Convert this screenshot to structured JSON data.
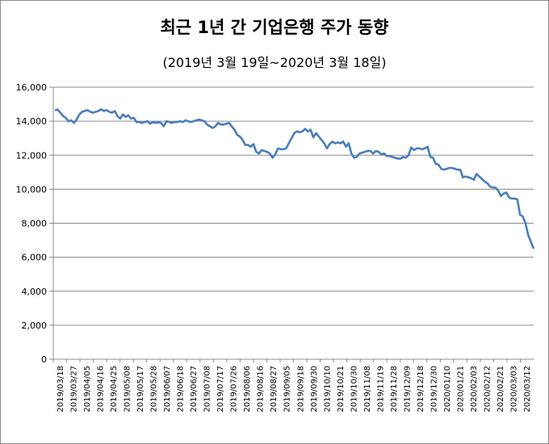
{
  "chart_data": {
    "type": "line",
    "title": "최근 1년 간 기업은행 주가 동향",
    "subtitle": "(2019년 3월 19일~2020년 3월 18일)",
    "xlabel": "",
    "ylabel": "",
    "ylim": [
      0,
      16000
    ],
    "yticks": [
      0,
      2000,
      4000,
      6000,
      8000,
      10000,
      12000,
      14000,
      16000
    ],
    "ytick_labels": [
      "0",
      "2,000",
      "4,000",
      "6,000",
      "8,000",
      "10,000",
      "12,000",
      "14,000",
      "16,000"
    ],
    "grid": true,
    "legend": "none",
    "line_color": "#4a7ebb",
    "x_tick_labels": [
      "2019/03/18",
      "2019/03/27",
      "2019/04/05",
      "2019/04/16",
      "2019/04/25",
      "2019/05/08",
      "2019/05/17",
      "2019/05/28",
      "2019/06/07",
      "2019/06/18",
      "2019/06/27",
      "2019/07/08",
      "2019/07/17",
      "2019/07/26",
      "2019/08/06",
      "2019/08/16",
      "2019/08/27",
      "2019/09/05",
      "2019/09/18",
      "2019/09/30",
      "2019/10/10",
      "2019/10/21",
      "2019/10/30",
      "2019/11/08",
      "2019/11/19",
      "2019/11/28",
      "2019/12/09",
      "2019/12/18",
      "2019/12/30",
      "2020/01/10",
      "2020/01/21",
      "2020/02/03",
      "2020/02/12",
      "2020/02/21",
      "2020/03/03",
      "2020/03/12"
    ],
    "series": [
      {
        "values": [
          14650,
          14680,
          14500,
          14300,
          14200,
          14000,
          14050,
          13900,
          14100,
          14400,
          14550,
          14600,
          14650,
          14550,
          14500,
          14550,
          14600,
          14700,
          14600,
          14650,
          14550,
          14500,
          14600,
          14300,
          14150,
          14400,
          14250,
          14350,
          14150,
          14200,
          13950,
          13950,
          13900,
          13950,
          14000,
          13850,
          13950,
          13900,
          13950,
          13900,
          13700,
          14000,
          13950,
          13900,
          13950,
          13950,
          14000,
          13950,
          14050,
          14000,
          13950,
          14000,
          14050,
          14100,
          14050,
          14000,
          13800,
          13700,
          13600,
          13700,
          13900,
          13800,
          13800,
          13850,
          13900,
          13700,
          13500,
          13200,
          13100,
          12900,
          12600,
          12600,
          12500,
          12650,
          12200,
          12100,
          12300,
          12250,
          12200,
          12100,
          11850,
          12050,
          12400,
          12350,
          12350,
          12400,
          12700,
          13000,
          13300,
          13400,
          13350,
          13400,
          13550,
          13400,
          13500,
          13050,
          13300,
          13100,
          12900,
          12700,
          12400,
          12650,
          12800,
          12700,
          12750,
          12700,
          12800,
          12500,
          12700,
          12100,
          11850,
          11900,
          12100,
          12150,
          12200,
          12250,
          12250,
          12100,
          12250,
          12200,
          12050,
          12100,
          11950,
          11950,
          11900,
          11850,
          11800,
          11800,
          11900,
          11850,
          12000,
          12450,
          12300,
          12400,
          12400,
          12350,
          12400,
          12500,
          11900,
          11850,
          11500,
          11450,
          11200,
          11150,
          11200,
          11250,
          11250,
          11200,
          11150,
          11150,
          10700,
          10750,
          10700,
          10650,
          10550,
          10900,
          10750,
          10600,
          10450,
          10350,
          10150,
          10100,
          10100,
          9900,
          9600,
          9750,
          9800,
          9500,
          9450,
          9450,
          9400,
          8500,
          8400,
          8000,
          7300,
          6900,
          6500
        ]
      }
    ]
  }
}
